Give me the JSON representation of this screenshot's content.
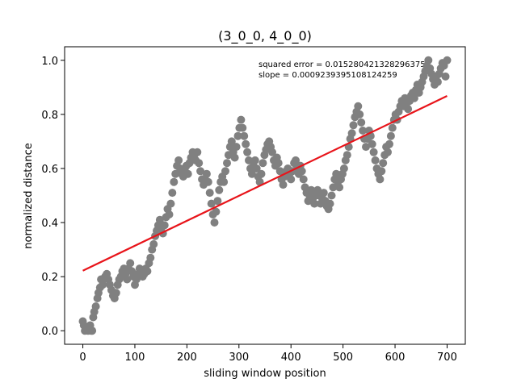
{
  "chart_data": {
    "type": "scatter",
    "title": "(3_0_0, 4_0_0)",
    "xlabel": "sliding window position",
    "ylabel": "normalized distance",
    "xlim": [
      -35,
      735
    ],
    "ylim": [
      -0.05,
      1.05
    ],
    "x_ticks": [
      0,
      100,
      200,
      300,
      400,
      500,
      600,
      700
    ],
    "y_ticks": [
      0.0,
      0.2,
      0.4,
      0.6,
      0.8,
      1.0
    ],
    "x_tick_labels": [
      "0",
      "100",
      "200",
      "300",
      "400",
      "500",
      "600",
      "700"
    ],
    "y_tick_labels": [
      "0.0",
      "0.2",
      "0.4",
      "0.6",
      "0.8",
      "1.0"
    ],
    "grid": false,
    "marker_color": "#808080",
    "fit_color": "#e8141a",
    "annotations": [
      "squared error = 0.015280421328296375",
      "slope = 0.000923939510812425​9"
    ],
    "fit_line": {
      "x": [
        0,
        700
      ],
      "y": [
        0.222,
        0.868
      ]
    },
    "series": [
      {
        "points": [
          [
            0,
            0.035
          ],
          [
            2,
            0.02
          ],
          [
            4,
            0.0
          ],
          [
            8,
            0.01
          ],
          [
            10,
            0.0
          ],
          [
            14,
            0.02
          ],
          [
            16,
            0.0
          ],
          [
            18,
            0.0
          ],
          [
            20,
            0.05
          ],
          [
            22,
            0.07
          ],
          [
            25,
            0.09
          ],
          [
            28,
            0.12
          ],
          [
            30,
            0.14
          ],
          [
            33,
            0.16
          ],
          [
            35,
            0.19
          ],
          [
            38,
            0.17
          ],
          [
            40,
            0.19
          ],
          [
            43,
            0.2
          ],
          [
            46,
            0.21
          ],
          [
            49,
            0.19
          ],
          [
            52,
            0.17
          ],
          [
            55,
            0.15
          ],
          [
            58,
            0.13
          ],
          [
            61,
            0.12
          ],
          [
            64,
            0.14
          ],
          [
            67,
            0.17
          ],
          [
            70,
            0.19
          ],
          [
            73,
            0.2
          ],
          [
            76,
            0.22
          ],
          [
            79,
            0.23
          ],
          [
            82,
            0.21
          ],
          [
            85,
            0.19
          ],
          [
            88,
            0.23
          ],
          [
            91,
            0.25
          ],
          [
            94,
            0.22
          ],
          [
            97,
            0.2
          ],
          [
            100,
            0.17
          ],
          [
            103,
            0.19
          ],
          [
            106,
            0.21
          ],
          [
            109,
            0.23
          ],
          [
            112,
            0.22
          ],
          [
            115,
            0.2
          ],
          [
            118,
            0.21
          ],
          [
            121,
            0.23
          ],
          [
            124,
            0.22
          ],
          [
            127,
            0.25
          ],
          [
            130,
            0.27
          ],
          [
            133,
            0.3
          ],
          [
            136,
            0.32
          ],
          [
            139,
            0.35
          ],
          [
            142,
            0.37
          ],
          [
            145,
            0.39
          ],
          [
            148,
            0.41
          ],
          [
            151,
            0.38
          ],
          [
            154,
            0.36
          ],
          [
            157,
            0.39
          ],
          [
            160,
            0.42
          ],
          [
            163,
            0.45
          ],
          [
            166,
            0.43
          ],
          [
            169,
            0.47
          ],
          [
            172,
            0.51
          ],
          [
            175,
            0.55
          ],
          [
            178,
            0.58
          ],
          [
            181,
            0.61
          ],
          [
            184,
            0.63
          ],
          [
            187,
            0.6
          ],
          [
            190,
            0.58
          ],
          [
            193,
            0.57
          ],
          [
            196,
            0.6
          ],
          [
            199,
            0.61
          ],
          [
            202,
            0.58
          ],
          [
            205,
            0.62
          ],
          [
            208,
            0.64
          ],
          [
            211,
            0.66
          ],
          [
            214,
            0.65
          ],
          [
            217,
            0.63
          ],
          [
            220,
            0.66
          ],
          [
            223,
            0.62
          ],
          [
            226,
            0.59
          ],
          [
            229,
            0.56
          ],
          [
            232,
            0.54
          ],
          [
            235,
            0.56
          ],
          [
            238,
            0.58
          ],
          [
            241,
            0.55
          ],
          [
            244,
            0.51
          ],
          [
            247,
            0.47
          ],
          [
            250,
            0.43
          ],
          [
            253,
            0.4
          ],
          [
            256,
            0.44
          ],
          [
            259,
            0.48
          ],
          [
            262,
            0.52
          ],
          [
            265,
            0.55
          ],
          [
            268,
            0.57
          ],
          [
            271,
            0.55
          ],
          [
            274,
            0.59
          ],
          [
            277,
            0.62
          ],
          [
            280,
            0.65
          ],
          [
            283,
            0.68
          ],
          [
            286,
            0.7
          ],
          [
            289,
            0.66
          ],
          [
            292,
            0.64
          ],
          [
            295,
            0.68
          ],
          [
            298,
            0.72
          ],
          [
            301,
            0.75
          ],
          [
            304,
            0.78
          ],
          [
            307,
            0.75
          ],
          [
            310,
            0.72
          ],
          [
            313,
            0.69
          ],
          [
            316,
            0.66
          ],
          [
            319,
            0.63
          ],
          [
            322,
            0.6
          ],
          [
            325,
            0.58
          ],
          [
            328,
            0.61
          ],
          [
            331,
            0.63
          ],
          [
            334,
            0.6
          ],
          [
            337,
            0.57
          ],
          [
            340,
            0.55
          ],
          [
            343,
            0.58
          ],
          [
            346,
            0.62
          ],
          [
            349,
            0.65
          ],
          [
            352,
            0.67
          ],
          [
            355,
            0.69
          ],
          [
            358,
            0.7
          ],
          [
            361,
            0.68
          ],
          [
            364,
            0.66
          ],
          [
            367,
            0.63
          ],
          [
            370,
            0.61
          ],
          [
            373,
            0.64
          ],
          [
            376,
            0.62
          ],
          [
            379,
            0.59
          ],
          [
            382,
            0.56
          ],
          [
            385,
            0.54
          ],
          [
            388,
            0.57
          ],
          [
            391,
            0.59
          ],
          [
            394,
            0.6
          ],
          [
            397,
            0.58
          ],
          [
            400,
            0.56
          ],
          [
            403,
            0.59
          ],
          [
            406,
            0.62
          ],
          [
            409,
            0.63
          ],
          [
            412,
            0.6
          ],
          [
            415,
            0.58
          ],
          [
            418,
            0.61
          ],
          [
            421,
            0.59
          ],
          [
            424,
            0.56
          ],
          [
            427,
            0.53
          ],
          [
            430,
            0.51
          ],
          [
            433,
            0.48
          ],
          [
            436,
            0.5
          ],
          [
            439,
            0.52
          ],
          [
            442,
            0.49
          ],
          [
            445,
            0.47
          ],
          [
            448,
            0.5
          ],
          [
            451,
            0.52
          ],
          [
            454,
            0.5
          ],
          [
            457,
            0.47
          ],
          [
            460,
            0.49
          ],
          [
            463,
            0.51
          ],
          [
            466,
            0.48
          ],
          [
            469,
            0.46
          ],
          [
            472,
            0.45
          ],
          [
            475,
            0.47
          ],
          [
            478,
            0.5
          ],
          [
            481,
            0.53
          ],
          [
            484,
            0.56
          ],
          [
            487,
            0.58
          ],
          [
            490,
            0.55
          ],
          [
            493,
            0.53
          ],
          [
            496,
            0.56
          ],
          [
            499,
            0.58
          ],
          [
            502,
            0.6
          ],
          [
            505,
            0.63
          ],
          [
            508,
            0.65
          ],
          [
            511,
            0.68
          ],
          [
            514,
            0.71
          ],
          [
            517,
            0.73
          ],
          [
            520,
            0.76
          ],
          [
            523,
            0.79
          ],
          [
            526,
            0.81
          ],
          [
            529,
            0.83
          ],
          [
            532,
            0.8
          ],
          [
            535,
            0.77
          ],
          [
            538,
            0.74
          ],
          [
            541,
            0.71
          ],
          [
            544,
            0.68
          ],
          [
            547,
            0.71
          ],
          [
            550,
            0.74
          ],
          [
            553,
            0.72
          ],
          [
            556,
            0.69
          ],
          [
            559,
            0.66
          ],
          [
            562,
            0.63
          ],
          [
            565,
            0.6
          ],
          [
            568,
            0.58
          ],
          [
            571,
            0.56
          ],
          [
            574,
            0.59
          ],
          [
            577,
            0.62
          ],
          [
            580,
            0.65
          ],
          [
            583,
            0.68
          ],
          [
            586,
            0.66
          ],
          [
            589,
            0.69
          ],
          [
            592,
            0.72
          ],
          [
            595,
            0.75
          ],
          [
            598,
            0.78
          ],
          [
            601,
            0.8
          ],
          [
            604,
            0.78
          ],
          [
            607,
            0.81
          ],
          [
            610,
            0.83
          ],
          [
            613,
            0.85
          ],
          [
            616,
            0.83
          ],
          [
            619,
            0.86
          ],
          [
            622,
            0.84
          ],
          [
            625,
            0.82
          ],
          [
            628,
            0.85
          ],
          [
            631,
            0.87
          ],
          [
            634,
            0.88
          ],
          [
            637,
            0.86
          ],
          [
            640,
            0.89
          ],
          [
            643,
            0.91
          ],
          [
            646,
            0.88
          ],
          [
            649,
            0.9
          ],
          [
            652,
            0.92
          ],
          [
            655,
            0.94
          ],
          [
            658,
            0.96
          ],
          [
            661,
            0.98
          ],
          [
            664,
            1.0
          ],
          [
            667,
            0.97
          ],
          [
            670,
            0.95
          ],
          [
            673,
            0.93
          ],
          [
            676,
            0.91
          ],
          [
            679,
            0.94
          ],
          [
            682,
            0.92
          ],
          [
            685,
            0.95
          ],
          [
            688,
            0.97
          ],
          [
            691,
            0.99
          ],
          [
            694,
            0.98
          ],
          [
            697,
            0.94
          ],
          [
            700,
            1.0
          ]
        ]
      }
    ]
  }
}
